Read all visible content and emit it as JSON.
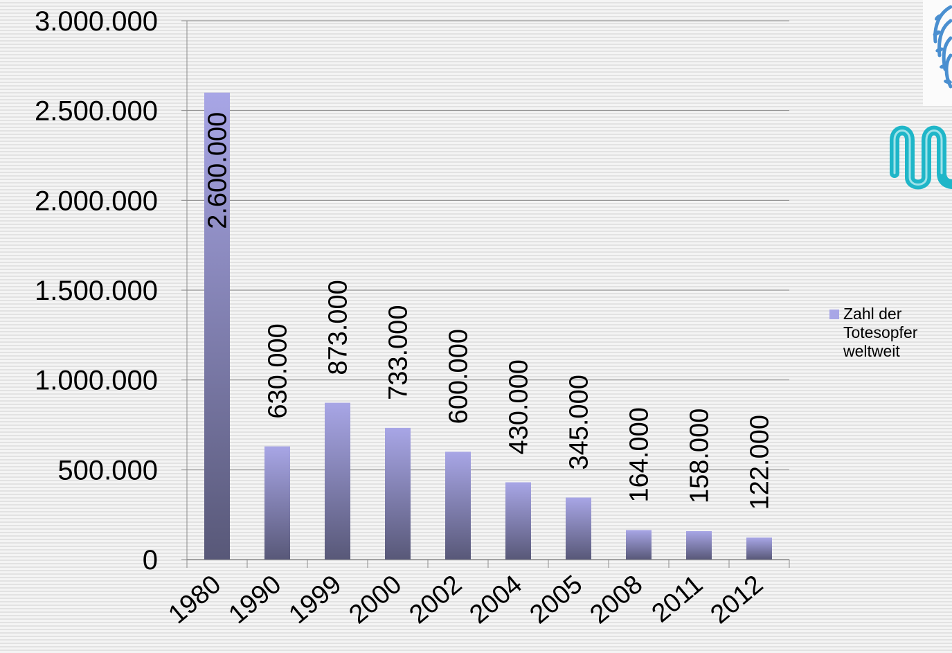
{
  "chart_data": {
    "type": "bar",
    "categories": [
      "1980",
      "1990",
      "1999",
      "2000",
      "2002",
      "2004",
      "2005",
      "2008",
      "2011",
      "2012"
    ],
    "series": [
      {
        "name": "Zahl der Totesopfer weltweit",
        "values": [
          2600000,
          630000,
          873000,
          733000,
          600000,
          430000,
          345000,
          164000,
          158000,
          122000
        ],
        "labels": [
          "2.600.000",
          "630.000",
          "873.000",
          "733.000",
          "600.000",
          "430.000",
          "345.000",
          "164.000",
          "158.000",
          "122.000"
        ]
      }
    ],
    "yticks": [
      0,
      500000,
      1000000,
      1500000,
      2000000,
      2500000,
      3000000
    ],
    "ytick_labels": [
      "0",
      "500.000",
      "1.000.000",
      "1.500.000",
      "2.000.000",
      "2.500.000",
      "3.000.000"
    ],
    "ylim": [
      0,
      3000000
    ],
    "grid": true,
    "legend_position": "right",
    "bar_color_top": "#a8a6e6",
    "bar_color_bottom": "#585878"
  },
  "legend": {
    "label": "Zahl der Totesopfer weltweit"
  },
  "logos": {
    "top_right": "un-wreath-emblem",
    "right": "m-logo"
  }
}
